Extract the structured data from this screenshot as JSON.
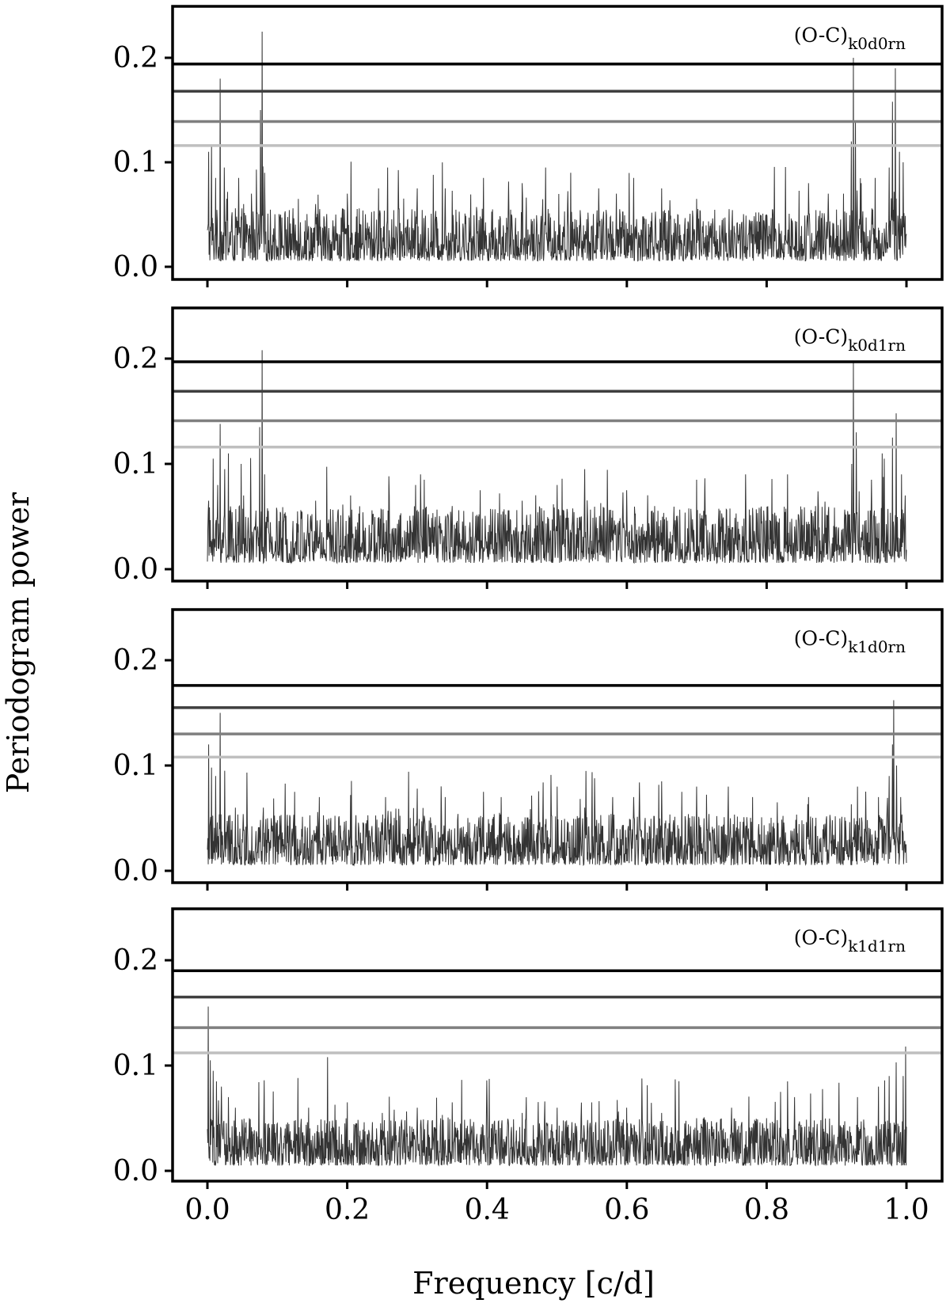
{
  "figure": {
    "xlabel": "Frequency [c/d]",
    "ylabel": "Periodogram power"
  },
  "chart_data": [
    {
      "type": "line",
      "label_main": "(O-C)",
      "label_sub": "k0d0rn",
      "xlim": [
        -0.05,
        1.05
      ],
      "ylim": [
        -0.01,
        0.25
      ],
      "xticks": [
        0.0,
        0.2,
        0.4,
        0.6,
        0.8,
        1.0
      ],
      "xtick_labels": [
        "",
        "",
        "",
        "",
        "",
        ""
      ],
      "yticks": [
        0.0,
        0.1,
        0.2
      ],
      "ytick_labels": [
        "0.0",
        "0.1",
        "0.2"
      ],
      "thresholds": [
        {
          "value": 0.194,
          "color": "#000000"
        },
        {
          "value": 0.168,
          "color": "#3f3f3f"
        },
        {
          "value": 0.139,
          "color": "#7f7f7f"
        },
        {
          "value": 0.116,
          "color": "#bfbfbf"
        }
      ],
      "noise_base": 0.028,
      "peaks": [
        [
          0.002,
          0.11
        ],
        [
          0.006,
          0.116
        ],
        [
          0.012,
          0.085
        ],
        [
          0.018,
          0.18
        ],
        [
          0.024,
          0.095
        ],
        [
          0.045,
          0.085
        ],
        [
          0.052,
          0.06
        ],
        [
          0.063,
          0.07
        ],
        [
          0.07,
          0.08
        ],
        [
          0.076,
          0.15
        ],
        [
          0.078,
          0.225
        ],
        [
          0.082,
          0.09
        ],
        [
          0.105,
          0.05
        ],
        [
          0.13,
          0.065
        ],
        [
          0.155,
          0.06
        ],
        [
          0.2,
          0.07
        ],
        [
          0.245,
          0.075
        ],
        [
          0.258,
          0.095
        ],
        [
          0.3,
          0.075
        ],
        [
          0.34,
          0.075
        ],
        [
          0.395,
          0.085
        ],
        [
          0.45,
          0.08
        ],
        [
          0.52,
          0.09
        ],
        [
          0.56,
          0.075
        ],
        [
          0.585,
          0.07
        ],
        [
          0.61,
          0.085
        ],
        [
          0.65,
          0.075
        ],
        [
          0.7,
          0.065
        ],
        [
          0.8,
          0.05
        ],
        [
          0.86,
          0.08
        ],
        [
          0.888,
          0.07
        ],
        [
          0.91,
          0.07
        ],
        [
          0.921,
          0.12
        ],
        [
          0.924,
          0.2
        ],
        [
          0.927,
          0.14
        ],
        [
          0.935,
          0.08
        ],
        [
          0.955,
          0.085
        ],
        [
          0.975,
          0.095
        ],
        [
          0.98,
          0.158
        ],
        [
          0.984,
          0.19
        ],
        [
          0.99,
          0.11
        ],
        [
          0.995,
          0.1
        ]
      ]
    },
    {
      "type": "line",
      "label_main": "(O-C)",
      "label_sub": "k0d1rn",
      "xlim": [
        -0.05,
        1.05
      ],
      "ylim": [
        -0.01,
        0.25
      ],
      "xticks": [
        0.0,
        0.2,
        0.4,
        0.6,
        0.8,
        1.0
      ],
      "xtick_labels": [
        "",
        "",
        "",
        "",
        "",
        ""
      ],
      "yticks": [
        0.0,
        0.1,
        0.2
      ],
      "ytick_labels": [
        "0.0",
        "0.1",
        "0.2"
      ],
      "thresholds": [
        {
          "value": 0.197,
          "color": "#000000"
        },
        {
          "value": 0.169,
          "color": "#3f3f3f"
        },
        {
          "value": 0.141,
          "color": "#7f7f7f"
        },
        {
          "value": 0.116,
          "color": "#bfbfbf"
        }
      ],
      "noise_base": 0.03,
      "peaks": [
        [
          0.002,
          0.065
        ],
        [
          0.008,
          0.105
        ],
        [
          0.015,
          0.08
        ],
        [
          0.018,
          0.138
        ],
        [
          0.025,
          0.095
        ],
        [
          0.03,
          0.11
        ],
        [
          0.048,
          0.1
        ],
        [
          0.052,
          0.07
        ],
        [
          0.075,
          0.135
        ],
        [
          0.078,
          0.208
        ],
        [
          0.082,
          0.09
        ],
        [
          0.155,
          0.065
        ],
        [
          0.205,
          0.07
        ],
        [
          0.26,
          0.07
        ],
        [
          0.298,
          0.08
        ],
        [
          0.305,
          0.09
        ],
        [
          0.31,
          0.085
        ],
        [
          0.35,
          0.06
        ],
        [
          0.39,
          0.075
        ],
        [
          0.418,
          0.072
        ],
        [
          0.45,
          0.065
        ],
        [
          0.5,
          0.08
        ],
        [
          0.54,
          0.095
        ],
        [
          0.6,
          0.075
        ],
        [
          0.64,
          0.06
        ],
        [
          0.7,
          0.085
        ],
        [
          0.77,
          0.09
        ],
        [
          0.83,
          0.09
        ],
        [
          0.87,
          0.06
        ],
        [
          0.922,
          0.1
        ],
        [
          0.924,
          0.198
        ],
        [
          0.928,
          0.13
        ],
        [
          0.95,
          0.085
        ],
        [
          0.965,
          0.11
        ],
        [
          0.98,
          0.125
        ],
        [
          0.985,
          0.148
        ],
        [
          0.993,
          0.09
        ],
        [
          0.998,
          0.07
        ]
      ]
    },
    {
      "type": "line",
      "label_main": "(O-C)",
      "label_sub": "k1d0rn",
      "xlim": [
        -0.05,
        1.05
      ],
      "ylim": [
        -0.01,
        0.25
      ],
      "xticks": [
        0.0,
        0.2,
        0.4,
        0.6,
        0.8,
        1.0
      ],
      "xtick_labels": [
        "",
        "",
        "",
        "",
        "",
        ""
      ],
      "yticks": [
        0.0,
        0.1,
        0.2
      ],
      "ytick_labels": [
        "0.0",
        "0.1",
        "0.2"
      ],
      "thresholds": [
        {
          "value": 0.176,
          "color": "#000000"
        },
        {
          "value": 0.155,
          "color": "#3f3f3f"
        },
        {
          "value": 0.13,
          "color": "#7f7f7f"
        },
        {
          "value": 0.108,
          "color": "#bfbfbf"
        }
      ],
      "noise_base": 0.027,
      "peaks": [
        [
          0.002,
          0.12
        ],
        [
          0.006,
          0.098
        ],
        [
          0.012,
          0.09
        ],
        [
          0.018,
          0.15
        ],
        [
          0.025,
          0.095
        ],
        [
          0.04,
          0.06
        ],
        [
          0.08,
          0.06
        ],
        [
          0.125,
          0.075
        ],
        [
          0.16,
          0.07
        ],
        [
          0.205,
          0.072
        ],
        [
          0.255,
          0.07
        ],
        [
          0.3,
          0.078
        ],
        [
          0.34,
          0.07
        ],
        [
          0.395,
          0.075
        ],
        [
          0.42,
          0.07
        ],
        [
          0.5,
          0.08
        ],
        [
          0.54,
          0.06
        ],
        [
          0.58,
          0.07
        ],
        [
          0.61,
          0.07
        ],
        [
          0.65,
          0.085
        ],
        [
          0.7,
          0.08
        ],
        [
          0.745,
          0.08
        ],
        [
          0.78,
          0.07
        ],
        [
          0.815,
          0.065
        ],
        [
          0.86,
          0.07
        ],
        [
          0.93,
          0.08
        ],
        [
          0.96,
          0.07
        ],
        [
          0.975,
          0.09
        ],
        [
          0.98,
          0.12
        ],
        [
          0.982,
          0.162
        ],
        [
          0.986,
          0.1
        ],
        [
          0.992,
          0.07
        ]
      ]
    },
    {
      "type": "line",
      "label_main": "(O-C)",
      "label_sub": "k1d1rn",
      "xlim": [
        -0.05,
        1.05
      ],
      "ylim": [
        -0.01,
        0.25
      ],
      "xticks": [
        0.0,
        0.2,
        0.4,
        0.6,
        0.8,
        1.0
      ],
      "xtick_labels": [
        "0.0",
        "0.2",
        "0.4",
        "0.6",
        "0.8",
        "1.0"
      ],
      "yticks": [
        0.0,
        0.1,
        0.2
      ],
      "ytick_labels": [
        "0.0",
        "0.1",
        "0.2"
      ],
      "thresholds": [
        {
          "value": 0.19,
          "color": "#000000"
        },
        {
          "value": 0.165,
          "color": "#3f3f3f"
        },
        {
          "value": 0.136,
          "color": "#7f7f7f"
        },
        {
          "value": 0.112,
          "color": "#bfbfbf"
        }
      ],
      "noise_base": 0.025,
      "peaks": [
        [
          0.001,
          0.156
        ],
        [
          0.004,
          0.105
        ],
        [
          0.008,
          0.095
        ],
        [
          0.013,
          0.085
        ],
        [
          0.02,
          0.08
        ],
        [
          0.03,
          0.07
        ],
        [
          0.04,
          0.06
        ],
        [
          0.06,
          0.05
        ],
        [
          0.1,
          0.045
        ],
        [
          0.145,
          0.06
        ],
        [
          0.172,
          0.108
        ],
        [
          0.2,
          0.065
        ],
        [
          0.25,
          0.055
        ],
        [
          0.3,
          0.06
        ],
        [
          0.35,
          0.065
        ],
        [
          0.4,
          0.06
        ],
        [
          0.45,
          0.055
        ],
        [
          0.5,
          0.06
        ],
        [
          0.55,
          0.065
        ],
        [
          0.6,
          0.06
        ],
        [
          0.65,
          0.055
        ],
        [
          0.7,
          0.05
        ],
        [
          0.75,
          0.06
        ],
        [
          0.8,
          0.05
        ],
        [
          0.82,
          0.075
        ],
        [
          0.83,
          0.085
        ],
        [
          0.84,
          0.07
        ],
        [
          0.88,
          0.06
        ],
        [
          0.93,
          0.07
        ],
        [
          0.96,
          0.08
        ],
        [
          0.975,
          0.09
        ],
        [
          0.985,
          0.103
        ],
        [
          0.995,
          0.09
        ],
        [
          0.999,
          0.118
        ]
      ]
    }
  ]
}
